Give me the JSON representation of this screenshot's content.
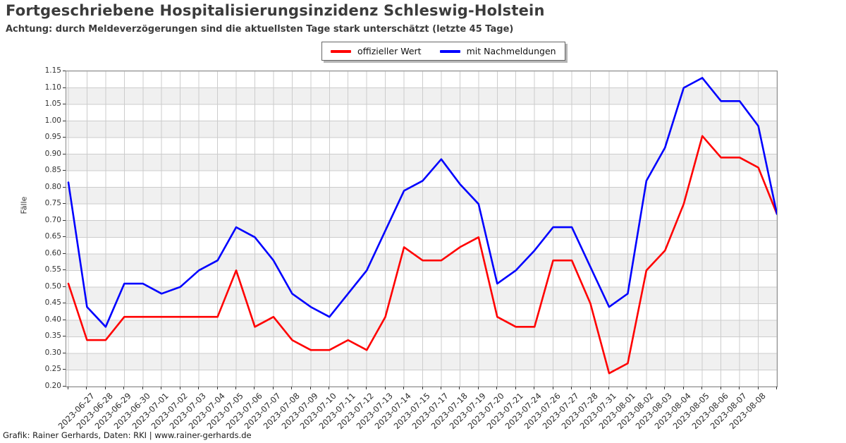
{
  "header": {
    "title": "Fortgeschriebene Hospitalisierungsinzidenz Schleswig-Holstein",
    "subtitle": "Achtung: durch Meldeverzögerungen sind die aktuellsten Tage stark unterschätzt (letzte 45 Tage)"
  },
  "footer": {
    "credit": "Grafik: Rainer Gerhards, Daten: RKI | www.rainer-gerhards.de"
  },
  "chart_data": {
    "type": "line",
    "title": "Fortgeschriebene Hospitalisierungsinzidenz Schleswig-Holstein",
    "subtitle": "Achtung: durch Meldeverzögerungen sind die aktuellsten Tage stark unterschätzt (letzte 45 Tage)",
    "xlabel": "",
    "ylabel": "Fälle",
    "ylim": [
      0.2,
      1.15
    ],
    "ytick_step": 0.05,
    "y_tick_labels": [
      "1.15",
      "1.10",
      "1.05",
      "1.00",
      "0.95",
      "0.90",
      "0.85",
      "0.80",
      "0.75",
      "0.70",
      "0.65",
      "0.60",
      "0.55",
      "0.50",
      "0.45",
      "0.40",
      "0.35",
      "0.30",
      "0.25",
      "0.20"
    ],
    "grid": true,
    "band_colors": [
      "#ffffff",
      "#f0f0f0"
    ],
    "gridline_color": "#cccccc",
    "legend_position": "top-center",
    "x_labels": [
      "",
      "2023-06-27",
      "2023-06-28",
      "2023-06-29",
      "2023-06-30",
      "2023-07-01",
      "2023-07-02",
      "2023-07-03",
      "2023-07-04",
      "2023-07-05",
      "2023-07-06",
      "2023-07-07",
      "2023-07-08",
      "2023-07-09",
      "2023-07-10",
      "2023-07-11",
      "2023-07-12",
      "2023-07-13",
      "2023-07-14",
      "2023-07-15",
      "2023-07-17",
      "2023-07-18",
      "2023-07-19",
      "2023-07-20",
      "2023-07-21",
      "2023-07-24",
      "2023-07-26",
      "2023-07-27",
      "2023-07-28",
      "2023-07-31",
      "2023-08-01",
      "2023-08-02",
      "2023-08-03",
      "2023-08-04",
      "2023-08-05",
      "2023-08-06",
      "2023-08-07",
      "2023-08-08",
      ""
    ],
    "series": [
      {
        "name": "offizieller Wert",
        "color": "#ff0000",
        "values": [
          0.51,
          0.34,
          0.34,
          0.41,
          0.41,
          0.41,
          0.41,
          0.41,
          0.41,
          0.55,
          0.38,
          0.41,
          0.34,
          0.31,
          0.31,
          0.34,
          0.31,
          0.41,
          0.62,
          0.58,
          0.58,
          0.62,
          0.65,
          0.41,
          0.38,
          0.38,
          0.58,
          0.58,
          0.45,
          0.24,
          0.27,
          0.55,
          0.61,
          0.75,
          0.955,
          0.89,
          0.89,
          0.86,
          0.72
        ]
      },
      {
        "name": "mit Nachmeldungen",
        "color": "#0000ff",
        "values": [
          0.815,
          0.44,
          0.38,
          0.51,
          0.51,
          0.48,
          0.5,
          0.55,
          0.58,
          0.68,
          0.65,
          0.58,
          0.48,
          0.44,
          0.41,
          0.48,
          0.55,
          0.67,
          0.79,
          0.82,
          0.885,
          0.81,
          0.75,
          0.51,
          0.55,
          0.61,
          0.68,
          0.68,
          0.56,
          0.44,
          0.48,
          0.82,
          0.92,
          1.1,
          1.13,
          1.06,
          1.06,
          0.985,
          0.72
        ]
      }
    ]
  }
}
